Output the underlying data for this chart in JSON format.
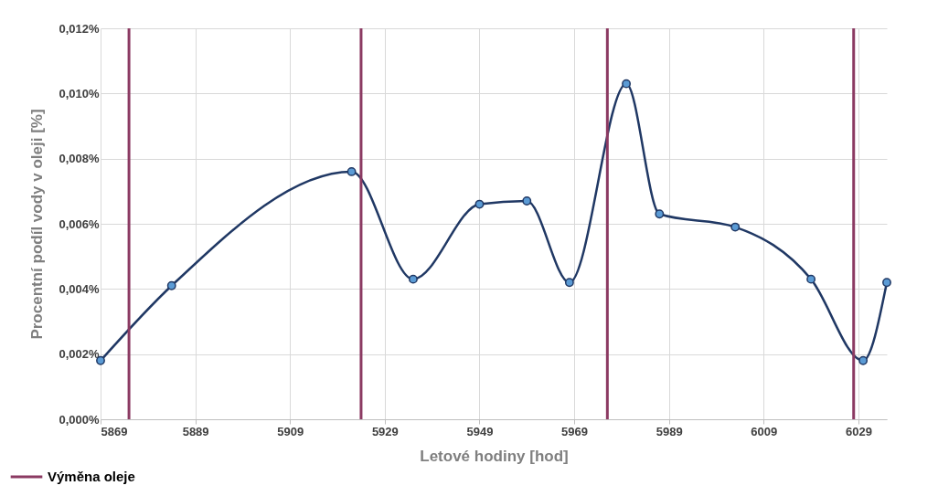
{
  "chart_data": {
    "type": "line",
    "xlabel": "Letové hodiny [hod]",
    "ylabel": "Procentní podíl vody v oleji [%]",
    "x": [
      5869,
      5884,
      5922,
      5935,
      5949,
      5959,
      5968,
      5980,
      5987,
      6003,
      6019,
      6030,
      6035
    ],
    "series": [
      {
        "color": "#203864",
        "values": [
          0.0018,
          0.0041,
          0.0076,
          0.0043,
          0.0066,
          0.0067,
          0.0042,
          0.0103,
          0.0063,
          0.0059,
          0.0043,
          0.0018,
          0.0042
        ]
      }
    ],
    "xlim": [
      5869,
      6035
    ],
    "xticks": [
      5869,
      5889,
      5909,
      5929,
      5949,
      5969,
      5989,
      6009,
      6029
    ],
    "ylim": [
      0,
      0.012
    ],
    "yticks": [
      {
        "value": 0,
        "label": "0,000%"
      },
      {
        "value": 0.002,
        "label": "0,002%"
      },
      {
        "value": 0.004,
        "label": "0,004%"
      },
      {
        "value": 0.006,
        "label": "0,006%"
      },
      {
        "value": 0.008,
        "label": "0,008%"
      },
      {
        "value": 0.01,
        "label": "0,010%"
      },
      {
        "value": 0.012,
        "label": "0,012%"
      }
    ],
    "ref_lines": [
      {
        "axis": "x",
        "value": 5875,
        "label": "Výměna oleje",
        "color": "#8b3a62"
      },
      {
        "axis": "x",
        "value": 5924,
        "color": "#8b3a62"
      },
      {
        "axis": "x",
        "value": 5976,
        "color": "#8b3a62"
      },
      {
        "axis": "x",
        "value": 6028,
        "color": "#8b3a62"
      }
    ],
    "grid": true,
    "legend": "bottom left",
    "marker": "circle",
    "line_style": "solid"
  }
}
